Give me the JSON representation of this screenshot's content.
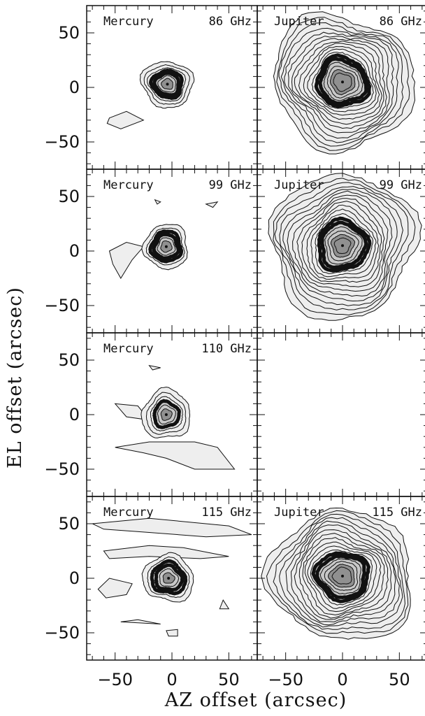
{
  "figure": {
    "xlabel": "AZ offset (arcsec)",
    "ylabel": "EL offset (arcsec)"
  },
  "chart_data": {
    "type": "contour",
    "xlim": [
      -75,
      75
    ],
    "ylim": [
      -75,
      75
    ],
    "x_ticks": [
      -50,
      0,
      50
    ],
    "x_tick_labels": [
      "−50",
      "0",
      "50"
    ],
    "y_ticks": [
      -50,
      0,
      50
    ],
    "y_tick_labels": [
      "−50",
      "0",
      "50"
    ],
    "grid": false,
    "colors": {
      "light": "#eeeeee",
      "mid": "#c8c8c8",
      "dark": "#909090",
      "ring": "#111111"
    },
    "panels": [
      {
        "id": "mercury-86",
        "row": 0,
        "col": 0,
        "source": "Mercury",
        "frequency": "86 GHz",
        "empty": false,
        "center": [
          -4,
          3
        ],
        "outer_radius": 22,
        "core_radius": 5,
        "ring_radius": 12,
        "n_contours": 7,
        "extensions": [
          {
            "points": [
              [
                -55,
                -28
              ],
              [
                -40,
                -22
              ],
              [
                -25,
                -30
              ],
              [
                -45,
                -38
              ],
              [
                -57,
                -33
              ]
            ]
          }
        ]
      },
      {
        "id": "jupiter-86",
        "row": 0,
        "col": 1,
        "source": "Jupiter",
        "frequency": "86 GHz",
        "empty": false,
        "center": [
          0,
          5
        ],
        "outer_radius": 62,
        "core_radius": 8,
        "ring_radius": 22,
        "n_contours": 18,
        "extensions": []
      },
      {
        "id": "mercury-99",
        "row": 1,
        "col": 0,
        "source": "Mercury",
        "frequency": "99 GHz",
        "empty": false,
        "center": [
          -5,
          4
        ],
        "outer_radius": 20,
        "core_radius": 5,
        "ring_radius": 12,
        "n_contours": 6,
        "extensions": [
          {
            "points": [
              [
                -55,
                0
              ],
              [
                -40,
                8
              ],
              [
                -25,
                4
              ],
              [
                -35,
                -8
              ],
              [
                -45,
                -25
              ],
              [
                -52,
                -12
              ]
            ]
          },
          {
            "points": [
              [
                -15,
                47
              ],
              [
                -10,
                45
              ],
              [
                -13,
                43
              ]
            ]
          },
          {
            "points": [
              [
                30,
                43
              ],
              [
                40,
                45
              ],
              [
                36,
                40
              ]
            ]
          }
        ]
      },
      {
        "id": "jupiter-99",
        "row": 1,
        "col": 1,
        "source": "Jupiter",
        "frequency": "99 GHz",
        "empty": false,
        "center": [
          0,
          5
        ],
        "outer_radius": 65,
        "core_radius": 7,
        "ring_radius": 22,
        "n_contours": 18,
        "extensions": []
      },
      {
        "id": "mercury-110",
        "row": 2,
        "col": 0,
        "source": "Mercury",
        "frequency": "110 GHz",
        "empty": false,
        "center": [
          -5,
          0
        ],
        "outer_radius": 22,
        "core_radius": 5,
        "ring_radius": 11,
        "n_contours": 6,
        "extensions": [
          {
            "points": [
              [
                -50,
                10
              ],
              [
                -30,
                8
              ],
              [
                -20,
                -5
              ],
              [
                -40,
                -2
              ]
            ]
          },
          {
            "points": [
              [
                -50,
                -30
              ],
              [
                -25,
                -35
              ],
              [
                -5,
                -40
              ],
              [
                20,
                -50
              ],
              [
                55,
                -50
              ],
              [
                40,
                -30
              ],
              [
                20,
                -25
              ],
              [
                -20,
                -25
              ]
            ]
          },
          {
            "points": [
              [
                -20,
                45
              ],
              [
                -10,
                43
              ],
              [
                -17,
                41
              ]
            ]
          }
        ]
      },
      {
        "id": "jupiter-110",
        "row": 2,
        "col": 1,
        "source": "",
        "frequency": "",
        "empty": true,
        "center": [
          0,
          0
        ],
        "outer_radius": 0,
        "core_radius": 0,
        "ring_radius": 0,
        "n_contours": 0,
        "extensions": []
      },
      {
        "id": "mercury-115",
        "row": 3,
        "col": 0,
        "source": "Mercury",
        "frequency": "115 GHz",
        "empty": false,
        "center": [
          -3,
          0
        ],
        "outer_radius": 22,
        "core_radius": 5,
        "ring_radius": 12,
        "n_contours": 6,
        "extensions": [
          {
            "points": [
              [
                -70,
                50
              ],
              [
                -20,
                55
              ],
              [
                50,
                48
              ],
              [
                70,
                40
              ],
              [
                30,
                38
              ],
              [
                -20,
                42
              ],
              [
                -60,
                45
              ]
            ]
          },
          {
            "points": [
              [
                -60,
                25
              ],
              [
                -20,
                30
              ],
              [
                10,
                28
              ],
              [
                40,
                22
              ],
              [
                50,
                20
              ],
              [
                25,
                18
              ],
              [
                -20,
                20
              ],
              [
                -55,
                18
              ]
            ]
          },
          {
            "points": [
              [
                -65,
                -10
              ],
              [
                -55,
                0
              ],
              [
                -35,
                -5
              ],
              [
                -40,
                -15
              ],
              [
                -58,
                -18
              ]
            ]
          },
          {
            "points": [
              [
                -45,
                -40
              ],
              [
                -10,
                -42
              ],
              [
                -30,
                -38
              ]
            ]
          },
          {
            "points": [
              [
                -5,
                -48
              ],
              [
                5,
                -47
              ],
              [
                5,
                -53
              ],
              [
                -3,
                -53
              ]
            ]
          },
          {
            "points": [
              [
                45,
                -20
              ],
              [
                50,
                -28
              ],
              [
                42,
                -28
              ]
            ]
          }
        ]
      },
      {
        "id": "jupiter-115",
        "row": 3,
        "col": 1,
        "source": "Jupiter",
        "frequency": "115 GHz",
        "empty": false,
        "center": [
          0,
          2
        ],
        "outer_radius": 62,
        "core_radius": 8,
        "ring_radius": 22,
        "n_contours": 18,
        "extensions": []
      }
    ]
  }
}
